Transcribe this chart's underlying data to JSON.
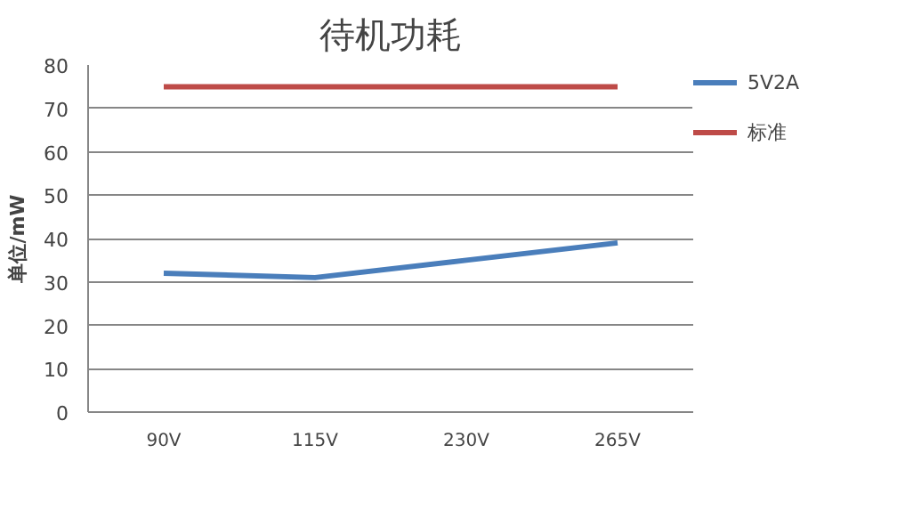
{
  "chart_data": {
    "type": "line",
    "title": "待机功耗",
    "ylabel": "单位/mW",
    "categories": [
      "90V",
      "115V",
      "230V",
      "265V"
    ],
    "series": [
      {
        "name": "5V2A",
        "color": "#4a7ebb",
        "values": [
          32,
          31,
          35,
          39
        ]
      },
      {
        "name": "标准",
        "color": "#be4b48",
        "values": [
          75,
          75,
          75,
          75
        ]
      }
    ],
    "ylim": [
      0,
      80
    ],
    "yticks": [
      0,
      10,
      20,
      30,
      40,
      50,
      60,
      70,
      80
    ],
    "grid": "y",
    "legend": "right",
    "marker": "none",
    "line_style": "solid"
  }
}
